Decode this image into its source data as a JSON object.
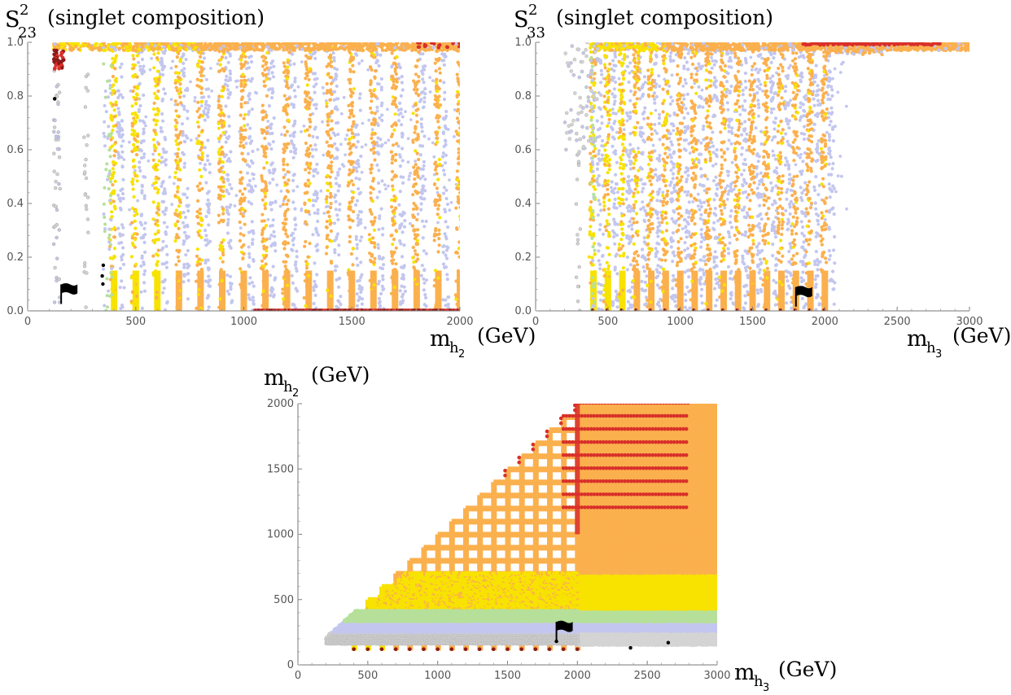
{
  "figure": {
    "panels": [
      "panel-s23-vs-mh2",
      "panel-s33-vs-mh3",
      "panel-mh2-vs-mh3"
    ]
  },
  "palette": {
    "gray": "#d4d4d4",
    "lavender": "#c3c6ee",
    "green": "#b6e09a",
    "yellow": "#f8e200",
    "orange": "#fbb04e",
    "red": "#d8302a",
    "darkred": "#8a1a16",
    "black": "#000000"
  },
  "chart_data": [
    {
      "id": "panel-s23-vs-mh2",
      "type": "scatter",
      "title_symbol": "S",
      "title_sup": "2",
      "title_sub": "23",
      "title_note": "(singlet composition)",
      "xlabel_main": "m",
      "xlabel_sub": "h",
      "xlabel_subsub": "2",
      "xlabel_unit": "(GeV)",
      "xlim": [
        0,
        2000
      ],
      "ylim": [
        0,
        1.0
      ],
      "xticks": [
        0,
        500,
        1000,
        1500,
        2000
      ],
      "xtick_labels": [
        "0",
        "500",
        "1000",
        "1500",
        "2000"
      ],
      "yticks": [
        0.0,
        0.2,
        0.4,
        0.6,
        0.8,
        1.0
      ],
      "ytick_labels": [
        "0.0",
        "0.2",
        "0.4",
        "0.6",
        "0.8",
        "1.0"
      ],
      "column_masses": [
        400,
        500,
        600,
        700,
        800,
        900,
        1000,
        1100,
        1200,
        1300,
        1400,
        1500,
        1600,
        1700,
        1800,
        1900,
        2000
      ],
      "saturated_band": {
        "y_min": 0.97,
        "y_max": 1.0,
        "x_min": 120,
        "x_max": 2000,
        "category": "orange"
      },
      "red_cluster": {
        "x": 145,
        "y": 0.97
      },
      "benchmark_flag": {
        "x": 155,
        "y": 0.05
      },
      "black_points": [
        {
          "x": 350,
          "y": 0.17
        },
        {
          "x": 345,
          "y": 0.13
        },
        {
          "x": 348,
          "y": 0.1
        },
        {
          "x": 125,
          "y": 0.79
        }
      ],
      "series_legend": [
        "gray",
        "lavender",
        "green",
        "yellow",
        "orange",
        "red"
      ]
    },
    {
      "id": "panel-s33-vs-mh3",
      "type": "scatter",
      "title_symbol": "S",
      "title_sup": "2",
      "title_sub": "33",
      "title_note": "(singlet composition)",
      "xlabel_main": "m",
      "xlabel_sub": "h",
      "xlabel_subsub": "3",
      "xlabel_unit": "(GeV)",
      "xlim": [
        0,
        3000
      ],
      "ylim": [
        0,
        1.0
      ],
      "xticks": [
        0,
        500,
        1000,
        1500,
        2000,
        2500,
        3000
      ],
      "xtick_labels": [
        "0",
        "500",
        "1000",
        "1500",
        "2000",
        "2500",
        "3000"
      ],
      "yticks": [
        0.0,
        0.2,
        0.4,
        0.6,
        0.8,
        1.0
      ],
      "ytick_labels": [
        "0.0",
        "0.2",
        "0.4",
        "0.6",
        "0.8",
        "1.0"
      ],
      "column_masses": [
        400,
        500,
        600,
        700,
        800,
        900,
        1000,
        1100,
        1200,
        1300,
        1400,
        1500,
        1600,
        1700,
        1800,
        1900,
        2000
      ],
      "saturated_band": {
        "y_min": 0.97,
        "y_max": 1.0,
        "x_min": 400,
        "x_max": 3000,
        "category": "orange"
      },
      "red_band": {
        "x_min": 1850,
        "x_max": 2800,
        "y": 0.99
      },
      "benchmark_flag": {
        "x": 1800,
        "y": 0.04
      },
      "series_legend": [
        "gray",
        "lavender",
        "green",
        "yellow",
        "orange",
        "red"
      ]
    },
    {
      "id": "panel-mh2-vs-mh3",
      "type": "scatter",
      "ylabel_main": "m",
      "ylabel_sub": "h",
      "ylabel_subsub": "2",
      "ylabel_unit": "(GeV)",
      "xlabel_main": "m",
      "xlabel_sub": "h",
      "xlabel_subsub": "3",
      "xlabel_unit": "(GeV)",
      "xlim": [
        0,
        3000
      ],
      "ylim": [
        0,
        2000
      ],
      "xticks": [
        0,
        500,
        1000,
        1500,
        2000,
        2500,
        3000
      ],
      "xtick_labels": [
        "0",
        "500",
        "1000",
        "1500",
        "2000",
        "2500",
        "3000"
      ],
      "yticks": [
        0,
        500,
        1000,
        1500,
        2000
      ],
      "ytick_labels": [
        "0",
        "500",
        "1000",
        "1500",
        "2000"
      ],
      "column_masses": [
        400,
        500,
        600,
        700,
        800,
        900,
        1000,
        1100,
        1200,
        1300,
        1400,
        1500,
        1600,
        1700,
        1800,
        1900,
        2000
      ],
      "row_masses": [
        400,
        500,
        600,
        700,
        800,
        900,
        1000,
        1100,
        1200,
        1300,
        1400,
        1500,
        1600,
        1700,
        1800,
        1900,
        2000
      ],
      "region_bands": [
        {
          "category": "gray",
          "y_min": 150,
          "y_max": 250
        },
        {
          "category": "lavender",
          "y_min": 250,
          "y_max": 330
        },
        {
          "category": "green",
          "y_min": 330,
          "y_max": 420
        },
        {
          "category": "yellow",
          "y_min": 420,
          "y_max": 700
        },
        {
          "category": "orange",
          "y_min": 700,
          "y_max": 2000
        }
      ],
      "red_rows": [
        1200,
        1300,
        1400,
        1500,
        1600,
        1700,
        1800,
        1900,
        2000
      ],
      "benchmark_flag": {
        "x": 1850,
        "y": 230
      },
      "black_points": [
        {
          "x": 2380,
          "y": 130
        },
        {
          "x": 2650,
          "y": 170
        },
        {
          "x": 1850,
          "y": 180
        }
      ]
    }
  ]
}
